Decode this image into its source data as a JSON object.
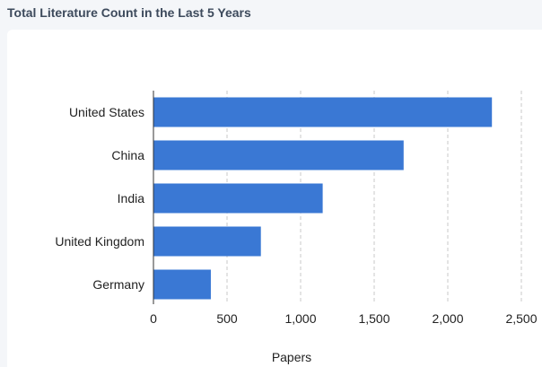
{
  "widget": {
    "title": "Total Literature Count in the Last 5 Years"
  },
  "chart_data": {
    "type": "bar",
    "orientation": "horizontal",
    "categories": [
      "United States",
      "China",
      "India",
      "United Kingdom",
      "Germany"
    ],
    "values": [
      2300,
      1700,
      1150,
      730,
      390
    ],
    "xlabel": "Papers",
    "ylabel": "",
    "xlim": [
      0,
      2500
    ],
    "xticks": [
      0,
      500,
      1000,
      1500,
      2000,
      2500
    ],
    "xtick_labels": [
      "0",
      "500",
      "1,000",
      "1,500",
      "2,000",
      "2,500"
    ],
    "grid": "vertical-dashed",
    "bar_color": "#3a78d4",
    "grid_color": "#c8c8c8",
    "axis_color": "#333333"
  }
}
